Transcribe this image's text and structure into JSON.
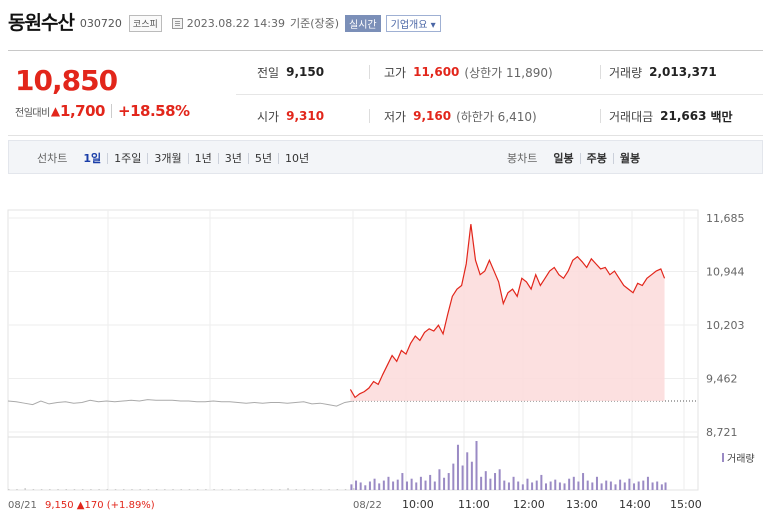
{
  "stock": {
    "name": "동원수산",
    "code": "030720",
    "market": "코스피",
    "timestamp": "2023.08.22 14:39",
    "basis": "기준(장중)",
    "live_badge": "실시간",
    "company_info": "기업개요 ▾"
  },
  "price": {
    "current": "10,850",
    "change_label": "전일대비",
    "change_arrow": "▲",
    "change_amount": "1,700",
    "change_percent": "+18.58%"
  },
  "quote": {
    "prev_close_label": "전일",
    "prev_close": "9,150",
    "high_label": "고가",
    "high": "11,600",
    "upper_limit": "(상한가 11,890)",
    "volume_label": "거래량",
    "volume": "2,013,371",
    "open_label": "시가",
    "open": "9,310",
    "low_label": "저가",
    "low": "9,160",
    "lower_limit": "(하한가 6,410)",
    "value_label": "거래대금",
    "value": "21,663",
    "value_unit": "백만"
  },
  "tabs": {
    "line_label": "선차트",
    "line_periods": [
      "1일",
      "1주일",
      "3개월",
      "1년",
      "3년",
      "5년",
      "10년"
    ],
    "active_period": "1일",
    "candle_label": "봉차트",
    "candle_periods": [
      "일봉",
      "주봉",
      "월봉"
    ]
  },
  "colors": {
    "up": "#e2261b",
    "up_fill": "#fbdada",
    "prev_line": "#aaaaaa",
    "volume": "#9a8ac4"
  },
  "chart_data": {
    "type": "line",
    "y_ticks": [
      "11,685",
      "10,944",
      "10,203",
      "9,462",
      "8,721"
    ],
    "ylim": [
      8721,
      11685
    ],
    "x_ticks": [
      "08/21",
      "08/22",
      "10:00",
      "11:00",
      "12:00",
      "13:00",
      "14:00",
      "15:00"
    ],
    "prev_close": 9150,
    "prev_day_summary": {
      "date": "08/21",
      "text": "9,150 ▲170 (+1.89%)"
    },
    "volume_legend": "거래량",
    "prev_day_series": {
      "name": "08/21",
      "values": [
        9150,
        9140,
        9120,
        9100,
        9150,
        9110,
        9130,
        9140,
        9120,
        9130,
        9160,
        9140,
        9150,
        9140,
        9150,
        9160,
        9150,
        9170,
        9160,
        9160,
        9160,
        9150,
        9150,
        9140,
        9140,
        9150,
        9140,
        9140,
        9130,
        9120,
        9130,
        9120,
        9130,
        9130,
        9120,
        9130,
        9140,
        9110,
        9120,
        9100,
        9080,
        9130,
        9150
      ]
    },
    "today_series": {
      "name": "08/22",
      "times": [
        "09:00",
        "09:05",
        "09:10",
        "09:15",
        "09:20",
        "09:25",
        "09:30",
        "09:35",
        "09:40",
        "09:45",
        "09:50",
        "09:55",
        "10:00",
        "10:05",
        "10:10",
        "10:15",
        "10:20",
        "10:25",
        "10:30",
        "10:35",
        "10:40",
        "10:45",
        "10:50",
        "10:55",
        "11:00",
        "11:05",
        "11:10",
        "11:15",
        "11:20",
        "11:25",
        "11:30",
        "11:35",
        "11:40",
        "11:45",
        "11:50",
        "11:55",
        "12:00",
        "12:05",
        "12:10",
        "12:15",
        "12:20",
        "12:25",
        "12:30",
        "12:35",
        "12:40",
        "12:45",
        "12:50",
        "12:55",
        "13:00",
        "13:05",
        "13:10",
        "13:15",
        "13:20",
        "13:25",
        "13:30",
        "13:35",
        "13:40",
        "13:45",
        "13:50",
        "13:55",
        "14:00",
        "14:05",
        "14:10",
        "14:15",
        "14:20",
        "14:25",
        "14:30",
        "14:35",
        "14:39"
      ],
      "values": [
        9310,
        9200,
        9250,
        9280,
        9330,
        9420,
        9380,
        9520,
        9650,
        9780,
        9700,
        9850,
        9800,
        9950,
        10050,
        9990,
        10100,
        10150,
        10120,
        10200,
        10080,
        10350,
        10600,
        10700,
        10750,
        11050,
        11600,
        11100,
        10900,
        10950,
        11100,
        10950,
        10800,
        10500,
        10650,
        10700,
        10600,
        10850,
        10800,
        10700,
        10900,
        10750,
        10850,
        10950,
        11000,
        10900,
        10850,
        10950,
        11100,
        11150,
        11080,
        11000,
        11120,
        11050,
        10980,
        11000,
        10900,
        10950,
        10850,
        10750,
        10700,
        10650,
        10780,
        10750,
        10850,
        10900,
        10950,
        10980,
        10850
      ]
    },
    "volume_today": [
      6,
      10,
      8,
      5,
      9,
      12,
      7,
      10,
      14,
      9,
      11,
      18,
      9,
      12,
      8,
      14,
      10,
      16,
      9,
      22,
      13,
      18,
      28,
      48,
      26,
      40,
      30,
      52,
      14,
      20,
      12,
      18,
      22,
      10,
      8,
      14,
      9,
      6,
      12,
      8,
      10,
      16,
      7,
      9,
      11,
      8,
      7,
      12,
      14,
      9,
      18,
      10,
      8,
      14,
      7,
      10,
      9,
      6,
      11,
      8,
      12,
      7,
      9,
      10,
      14,
      8,
      9,
      6,
      8
    ],
    "volume_prev": [
      1,
      1,
      2,
      1,
      1,
      1,
      1,
      1,
      1,
      1,
      1,
      1,
      1,
      1,
      1,
      1,
      1,
      1,
      1,
      1,
      1,
      1,
      1,
      1,
      1,
      1,
      1,
      1,
      1,
      1,
      1,
      1,
      1,
      1,
      2,
      1,
      1,
      1,
      1,
      1,
      1,
      1,
      2
    ]
  }
}
